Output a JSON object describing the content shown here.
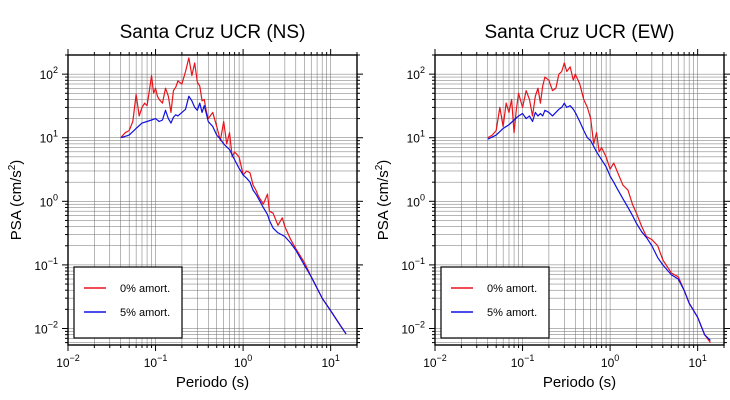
{
  "chart_data": [
    {
      "type": "line",
      "title": "Santa Cruz UCR (NS)",
      "xlabel": "Periodo (s)",
      "ylabel_main": "PSA (cm/s",
      "ylabel_sup": "2",
      "ylabel_close": ")",
      "xscale": "log",
      "yscale": "log",
      "xlim": [
        0.01,
        20
      ],
      "ylim": [
        0.0055,
        200
      ],
      "grid": true,
      "legend_position": "lower-left",
      "xticks": [
        {
          "value": 0.01,
          "base": "10",
          "exp": "−2"
        },
        {
          "value": 0.1,
          "base": "10",
          "exp": "−1"
        },
        {
          "value": 1,
          "base": "10",
          "exp": "0"
        },
        {
          "value": 10,
          "base": "10",
          "exp": "1"
        }
      ],
      "yticks": [
        {
          "value": 0.01,
          "base": "10",
          "exp": "−2"
        },
        {
          "value": 0.1,
          "base": "10",
          "exp": "−1"
        },
        {
          "value": 1,
          "base": "10",
          "exp": "0"
        },
        {
          "value": 10,
          "base": "10",
          "exp": "1"
        },
        {
          "value": 100,
          "base": "10",
          "exp": "2"
        }
      ],
      "series": [
        {
          "name": "0% amort.",
          "color": "#e8141b",
          "x": [
            0.04,
            0.045,
            0.05,
            0.055,
            0.06,
            0.065,
            0.07,
            0.075,
            0.08,
            0.085,
            0.09,
            0.095,
            0.1,
            0.105,
            0.11,
            0.12,
            0.13,
            0.14,
            0.15,
            0.16,
            0.17,
            0.18,
            0.2,
            0.22,
            0.24,
            0.26,
            0.28,
            0.3,
            0.32,
            0.34,
            0.36,
            0.38,
            0.4,
            0.45,
            0.5,
            0.55,
            0.6,
            0.65,
            0.7,
            0.75,
            0.8,
            0.9,
            1.0,
            1.1,
            1.2,
            1.3,
            1.4,
            1.5,
            1.7,
            1.9,
            2.0,
            2.2,
            2.5,
            2.8,
            3.0,
            3.5,
            4.0,
            5.0,
            6.0,
            8.0,
            10.0,
            13.0,
            15.0
          ],
          "y": [
            10,
            12,
            13,
            18,
            48,
            22,
            30,
            35,
            32,
            55,
            95,
            50,
            60,
            45,
            40,
            35,
            60,
            45,
            25,
            55,
            62,
            78,
            70,
            110,
            180,
            95,
            150,
            75,
            65,
            38,
            40,
            26,
            20,
            25,
            15,
            9,
            18,
            8,
            12,
            5,
            6,
            5,
            2.6,
            3,
            2.8,
            1.8,
            1.5,
            1.2,
            0.9,
            1.3,
            0.7,
            0.65,
            0.42,
            0.55,
            0.4,
            0.25,
            0.18,
            0.11,
            0.065,
            0.03,
            0.019,
            0.011,
            0.0082
          ]
        },
        {
          "name": "5% amort.",
          "color": "#1010e0",
          "x": [
            0.04,
            0.05,
            0.06,
            0.07,
            0.08,
            0.09,
            0.1,
            0.11,
            0.12,
            0.13,
            0.14,
            0.15,
            0.16,
            0.17,
            0.18,
            0.2,
            0.22,
            0.24,
            0.26,
            0.28,
            0.3,
            0.32,
            0.34,
            0.36,
            0.38,
            0.4,
            0.45,
            0.5,
            0.55,
            0.6,
            0.7,
            0.8,
            0.9,
            1.0,
            1.1,
            1.2,
            1.3,
            1.4,
            1.5,
            1.7,
            1.9,
            2.0,
            2.2,
            2.5,
            3.0,
            3.5,
            4.0,
            5.0,
            6.0,
            8.0,
            10.0,
            13.0,
            15.0
          ],
          "y": [
            10,
            11,
            14,
            17,
            18,
            19,
            20,
            18,
            19,
            27,
            20,
            17,
            21,
            23,
            22,
            25,
            28,
            45,
            38,
            30,
            27,
            35,
            25,
            32,
            24,
            18,
            15,
            11,
            9.5,
            8,
            6.5,
            4.5,
            3.3,
            2.6,
            2.3,
            2.0,
            1.5,
            1.3,
            1.1,
            0.8,
            0.62,
            0.5,
            0.38,
            0.32,
            0.28,
            0.22,
            0.17,
            0.1,
            0.065,
            0.03,
            0.019,
            0.011,
            0.0082
          ]
        }
      ]
    },
    {
      "type": "line",
      "title": "Santa Cruz UCR (EW)",
      "xlabel": "Periodo (s)",
      "ylabel_main": "PSA (cm/s",
      "ylabel_sup": "2",
      "ylabel_close": ")",
      "xscale": "log",
      "yscale": "log",
      "xlim": [
        0.01,
        20
      ],
      "ylim": [
        0.0055,
        200
      ],
      "grid": true,
      "legend_position": "lower-left",
      "xticks": [
        {
          "value": 0.01,
          "base": "10",
          "exp": "−2"
        },
        {
          "value": 0.1,
          "base": "10",
          "exp": "−1"
        },
        {
          "value": 1,
          "base": "10",
          "exp": "0"
        },
        {
          "value": 10,
          "base": "10",
          "exp": "1"
        }
      ],
      "yticks": [
        {
          "value": 0.01,
          "base": "10",
          "exp": "−2"
        },
        {
          "value": 0.1,
          "base": "10",
          "exp": "−1"
        },
        {
          "value": 1,
          "base": "10",
          "exp": "0"
        },
        {
          "value": 10,
          "base": "10",
          "exp": "1"
        },
        {
          "value": 100,
          "base": "10",
          "exp": "2"
        }
      ],
      "series": [
        {
          "name": "0% amort.",
          "color": "#e8141b",
          "x": [
            0.04,
            0.045,
            0.05,
            0.055,
            0.06,
            0.065,
            0.07,
            0.075,
            0.08,
            0.085,
            0.09,
            0.1,
            0.11,
            0.12,
            0.13,
            0.14,
            0.15,
            0.16,
            0.17,
            0.18,
            0.2,
            0.22,
            0.24,
            0.26,
            0.28,
            0.3,
            0.32,
            0.35,
            0.38,
            0.4,
            0.45,
            0.5,
            0.55,
            0.6,
            0.65,
            0.7,
            0.75,
            0.8,
            0.9,
            1.0,
            1.1,
            1.2,
            1.4,
            1.6,
            1.8,
            2.0,
            2.3,
            2.6,
            3.0,
            3.5,
            4.0,
            5.0,
            6.0,
            7.0,
            8.0,
            10.0,
            12.0,
            14.0
          ],
          "y": [
            10,
            11,
            13,
            30,
            15,
            35,
            25,
            40,
            12,
            28,
            50,
            30,
            55,
            40,
            22,
            45,
            60,
            35,
            65,
            90,
            80,
            55,
            60,
            100,
            110,
            150,
            110,
            130,
            80,
            100,
            70,
            40,
            30,
            20,
            8,
            12,
            6,
            7,
            5,
            3.2,
            4,
            3,
            1.8,
            1.5,
            0.9,
            0.65,
            0.4,
            0.28,
            0.25,
            0.2,
            0.12,
            0.075,
            0.065,
            0.04,
            0.025,
            0.015,
            0.008,
            0.006
          ]
        },
        {
          "name": "5% amort.",
          "color": "#1010e0",
          "x": [
            0.04,
            0.05,
            0.06,
            0.07,
            0.08,
            0.09,
            0.1,
            0.11,
            0.12,
            0.13,
            0.14,
            0.15,
            0.16,
            0.17,
            0.18,
            0.2,
            0.22,
            0.24,
            0.26,
            0.28,
            0.3,
            0.32,
            0.35,
            0.38,
            0.4,
            0.45,
            0.5,
            0.55,
            0.6,
            0.7,
            0.8,
            0.9,
            1.0,
            1.1,
            1.2,
            1.4,
            1.6,
            1.8,
            2.0,
            2.3,
            2.6,
            3.0,
            3.5,
            4.0,
            5.0,
            6.0,
            7.0,
            8.0,
            10.0,
            12.0,
            14.0
          ],
          "y": [
            9.5,
            11,
            14,
            16,
            19,
            22,
            24,
            20,
            22,
            18,
            25,
            22,
            24,
            22,
            27,
            25,
            22,
            25,
            28,
            30,
            35,
            30,
            32,
            28,
            25,
            18,
            13,
            10,
            9,
            6,
            4.5,
            3.5,
            2.5,
            2.0,
            1.6,
            1.1,
            0.8,
            0.6,
            0.45,
            0.33,
            0.27,
            0.2,
            0.13,
            0.1,
            0.07,
            0.06,
            0.04,
            0.025,
            0.015,
            0.008,
            0.0065
          ]
        }
      ]
    }
  ]
}
